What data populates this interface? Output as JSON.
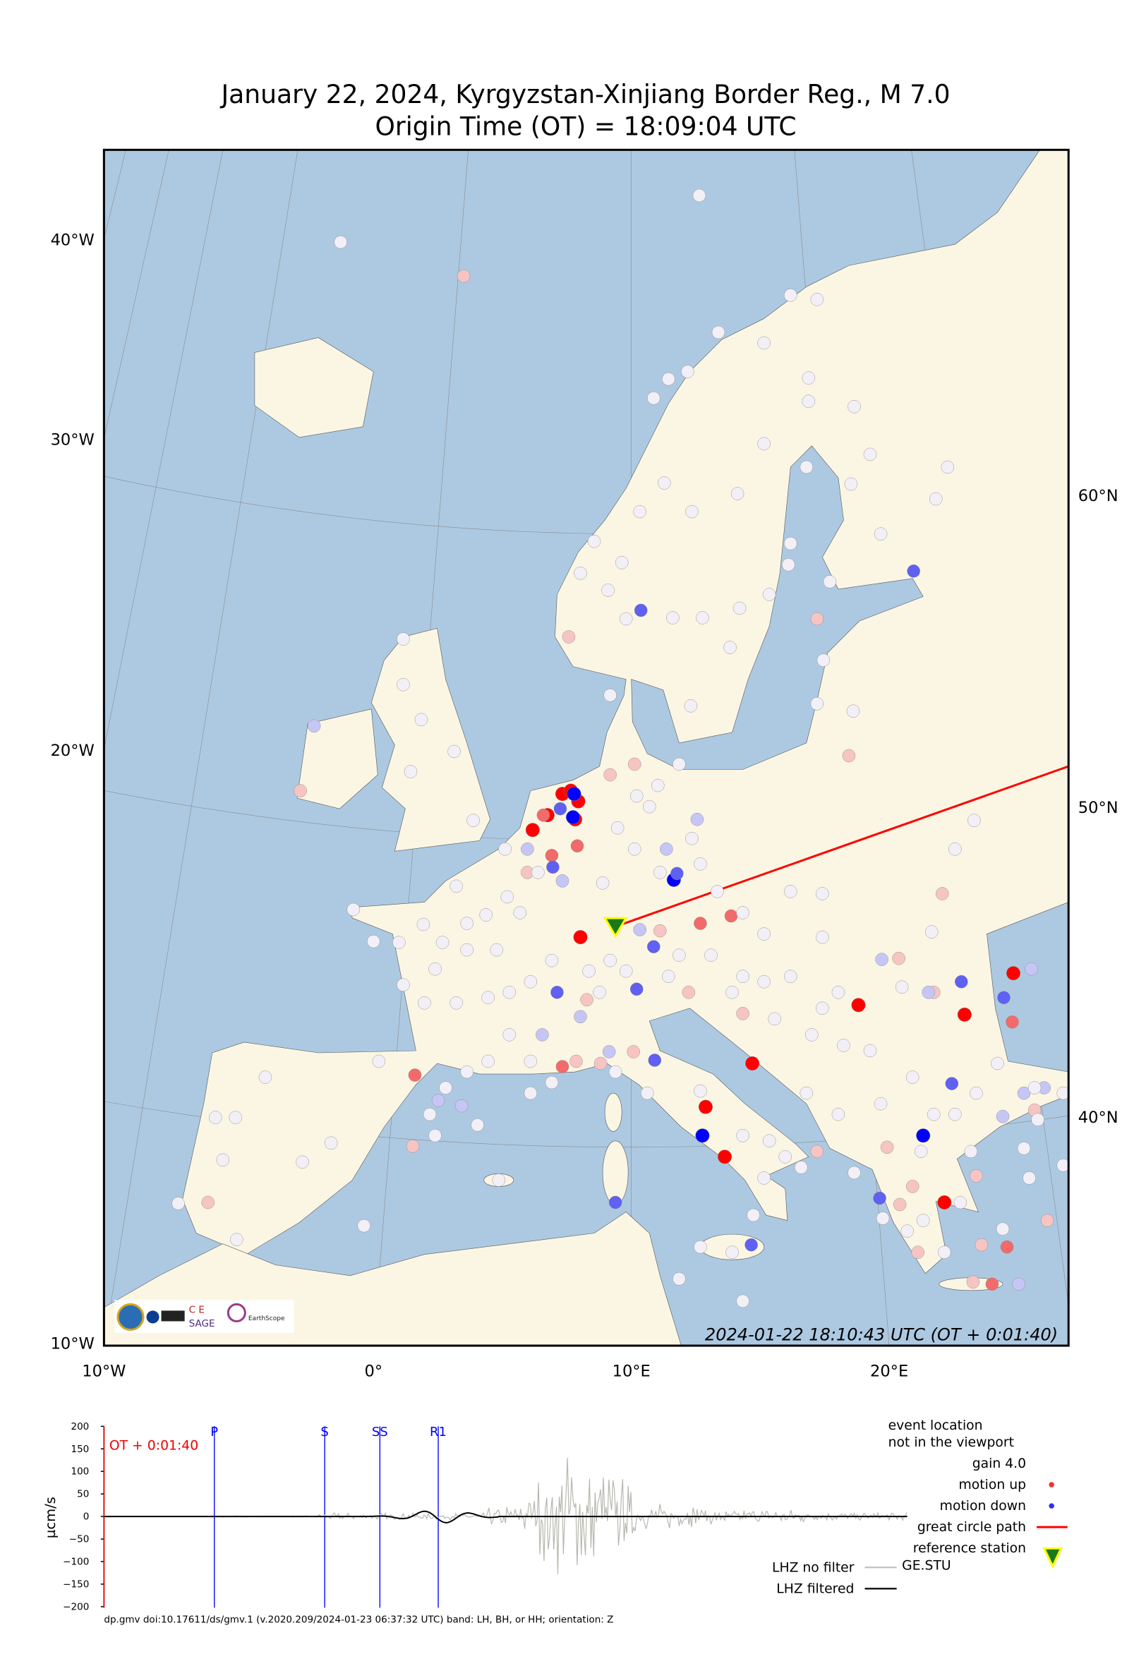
{
  "title": {
    "line1": "January 22, 2024, Kyrgyzstan-Xinjiang Border Reg., M 7.0",
    "line2": "Origin Time (OT) = 18:09:04 UTC"
  },
  "map": {
    "timestamp": "2024-01-22 18:10:43 UTC (OT + 0:01:40)",
    "bottom_labels": [
      "10°W",
      "0°",
      "10°E",
      "20°E"
    ],
    "left_labels": [
      "40°W",
      "30°W",
      "20°W",
      "10°W"
    ],
    "right_labels": [
      "60°N",
      "50°N",
      "40°N"
    ],
    "colors": {
      "ocean": "#adc9e2",
      "land": "#fbf6e3",
      "great_circle": "#ff0000",
      "motion_up": "#ff0000",
      "motion_down": "#0000ff"
    },
    "reference_station_icon": "triangle-down-icon",
    "logos": [
      "NSF",
      "NASA",
      "USGS",
      "SAGE",
      "EarthScope Consortium"
    ]
  },
  "seismogram": {
    "ylabel": "µcm/s",
    "yticks": [
      "200",
      "150",
      "100",
      "50",
      "0",
      "−50",
      "−100",
      "−150",
      "−200"
    ],
    "time_marker": "OT + 0:01:40",
    "phases": [
      "P",
      "S",
      "SS",
      "R1"
    ],
    "traces": [
      "LHZ no filter",
      "LHZ filtered"
    ],
    "footer": "dp.gmv doi:10.17611/ds/gmv.1 (v.2020.209/2024-01-23 06:37:32 UTC) band: LH, BH, or HH; orientation: Z"
  },
  "legend": {
    "event_note_1": "event location",
    "event_note_2": "not in the viewport",
    "gain": "gain  4.0",
    "motion_up": "motion up",
    "motion_down": "motion down",
    "great_circle": "great circle path",
    "reference_station": "reference station",
    "reference_code": "GE.STU"
  }
}
